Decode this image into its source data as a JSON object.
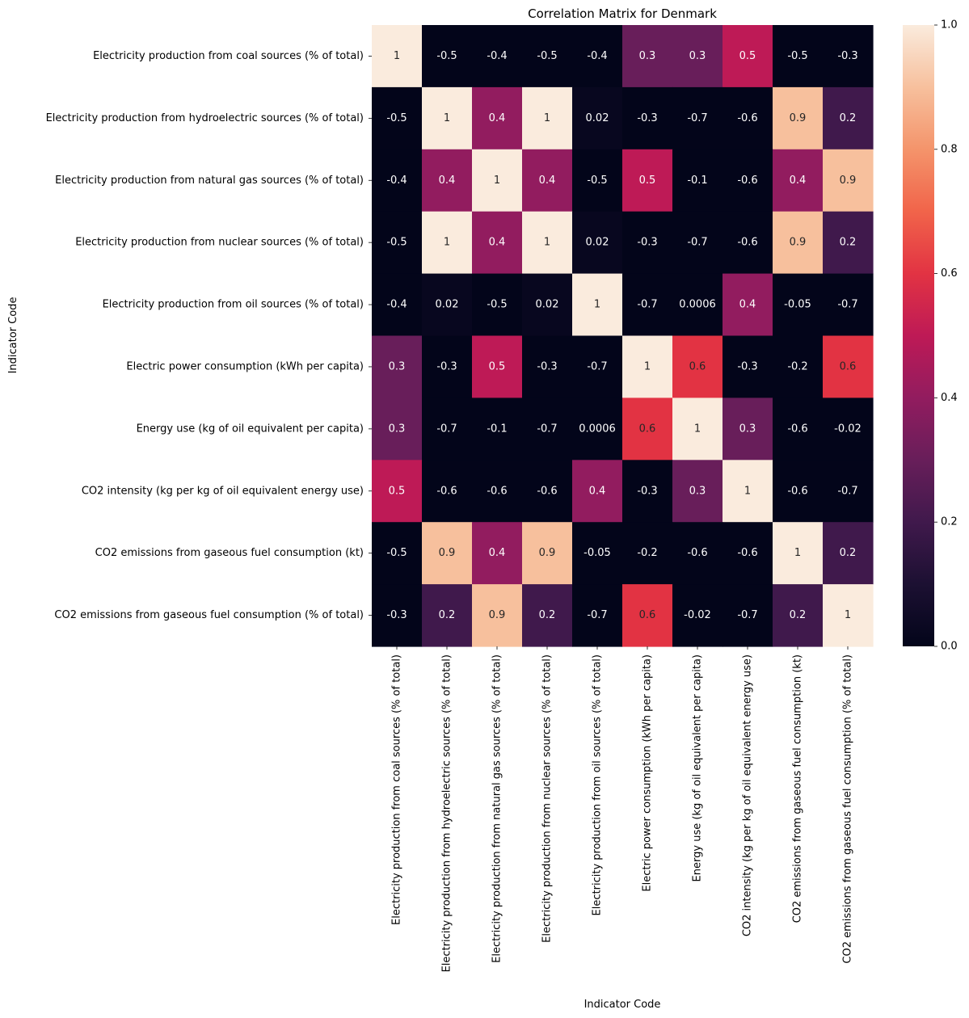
{
  "chart_data": {
    "type": "heatmap",
    "title": "Correlation Matrix for Denmark",
    "xlabel": "Indicator Code",
    "ylabel": "Indicator Code",
    "labels": [
      "Electricity production from coal sources (% of total)",
      "Electricity production from hydroelectric sources (% of total)",
      "Electricity production from natural gas sources (% of total)",
      "Electricity production from nuclear sources (% of total)",
      "Electricity production from oil sources (% of total)",
      "Electric power consumption (kWh per capita)",
      "Energy use (kg of oil equivalent per capita)",
      "CO2 intensity (kg per kg of oil equivalent energy use)",
      "CO2 emissions from gaseous fuel consumption (kt)",
      "CO2 emissions from gaseous fuel consumption (% of total)"
    ],
    "values": [
      [
        1,
        -0.5,
        -0.4,
        -0.5,
        -0.4,
        0.3,
        0.3,
        0.5,
        -0.5,
        -0.3
      ],
      [
        -0.5,
        1,
        0.4,
        1,
        0.02,
        -0.3,
        -0.7,
        -0.6,
        0.9,
        0.2
      ],
      [
        -0.4,
        0.4,
        1,
        0.4,
        -0.5,
        0.5,
        -0.1,
        -0.6,
        0.4,
        0.9
      ],
      [
        -0.5,
        1,
        0.4,
        1,
        0.02,
        -0.3,
        -0.7,
        -0.6,
        0.9,
        0.2
      ],
      [
        -0.4,
        0.02,
        -0.5,
        0.02,
        1,
        -0.7,
        0.0006,
        0.4,
        -0.05,
        -0.7
      ],
      [
        0.3,
        -0.3,
        0.5,
        -0.3,
        -0.7,
        1,
        0.6,
        -0.3,
        -0.2,
        0.6
      ],
      [
        0.3,
        -0.7,
        -0.1,
        -0.7,
        0.0006,
        0.6,
        1,
        0.3,
        -0.6,
        -0.02
      ],
      [
        0.5,
        -0.6,
        -0.6,
        -0.6,
        0.4,
        -0.3,
        0.3,
        1,
        -0.6,
        -0.7
      ],
      [
        -0.5,
        0.9,
        0.4,
        0.9,
        -0.05,
        -0.2,
        -0.6,
        -0.6,
        1,
        0.2
      ],
      [
        -0.3,
        0.2,
        0.9,
        0.2,
        -0.7,
        0.6,
        -0.02,
        -0.7,
        0.2,
        1
      ]
    ],
    "colorbar": {
      "colormap": "rocket",
      "range": [
        0,
        1
      ],
      "ticks": [
        "0.0",
        "0.2",
        "0.4",
        "0.6",
        "0.8",
        "1.0"
      ]
    },
    "grid": false
  }
}
